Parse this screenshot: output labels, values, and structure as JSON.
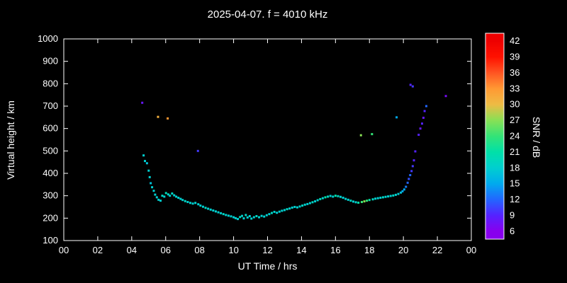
{
  "chart_data": {
    "type": "scatter",
    "title": "2025-04-07. f = 4010 kHz",
    "xlabel": "UT Time / hrs",
    "ylabel": "Virtual height / km",
    "xlim": [
      0,
      24
    ],
    "ylim": [
      100,
      1000
    ],
    "x_ticks": [
      0,
      2,
      4,
      6,
      8,
      10,
      12,
      14,
      16,
      18,
      20,
      22,
      24
    ],
    "x_ticklabels": [
      "00",
      "02",
      "04",
      "06",
      "08",
      "10",
      "12",
      "14",
      "16",
      "18",
      "20",
      "22",
      "00"
    ],
    "y_ticks": [
      100,
      200,
      300,
      400,
      500,
      600,
      700,
      800,
      900,
      1000
    ],
    "background_color": "#000000",
    "axis_color": "#ffffff",
    "grid": false,
    "marker": "square",
    "colorbar": {
      "label": "SNR / dB",
      "ticks": [
        42,
        39,
        36,
        33,
        30,
        27,
        24,
        21,
        18,
        15,
        12,
        9,
        6
      ],
      "range": [
        4.5,
        43.5
      ],
      "stops": [
        {
          "snr": 6,
          "color": "#8800ee"
        },
        {
          "snr": 9,
          "color": "#5522ff"
        },
        {
          "snr": 12,
          "color": "#2266ff"
        },
        {
          "snr": 15,
          "color": "#00aaee"
        },
        {
          "snr": 18,
          "color": "#00cfcf"
        },
        {
          "snr": 21,
          "color": "#00e0a8"
        },
        {
          "snr": 24,
          "color": "#33e377"
        },
        {
          "snr": 27,
          "color": "#88e055"
        },
        {
          "snr": 30,
          "color": "#eebb44"
        },
        {
          "snr": 33,
          "color": "#ff9933"
        },
        {
          "snr": 36,
          "color": "#ff5522"
        },
        {
          "snr": 39,
          "color": "#ff1100"
        },
        {
          "snr": 42,
          "color": "#ee0000"
        }
      ]
    },
    "points_format": [
      "ut_hr",
      "virtual_height_km",
      "snr_db"
    ],
    "points": [
      [
        4.62,
        715,
        8
      ],
      [
        4.7,
        480,
        18
      ],
      [
        4.78,
        455,
        18
      ],
      [
        4.9,
        445,
        17
      ],
      [
        5.0,
        412,
        18
      ],
      [
        5.06,
        383,
        18
      ],
      [
        5.12,
        356,
        17
      ],
      [
        5.2,
        338,
        18
      ],
      [
        5.3,
        322,
        18
      ],
      [
        5.38,
        305,
        18
      ],
      [
        5.48,
        293,
        18
      ],
      [
        5.55,
        652,
        31
      ],
      [
        5.58,
        282,
        18
      ],
      [
        5.7,
        278,
        18
      ],
      [
        5.8,
        300,
        19
      ],
      [
        5.92,
        296,
        18
      ],
      [
        6.02,
        312,
        20
      ],
      [
        6.12,
        645,
        33
      ],
      [
        6.15,
        306,
        19
      ],
      [
        6.25,
        300,
        18
      ],
      [
        6.38,
        310,
        19
      ],
      [
        6.5,
        302,
        18
      ],
      [
        6.62,
        296,
        18
      ],
      [
        6.75,
        291,
        18
      ],
      [
        6.88,
        286,
        18
      ],
      [
        7.0,
        281,
        18
      ],
      [
        7.15,
        276,
        19
      ],
      [
        7.3,
        272,
        18
      ],
      [
        7.45,
        268,
        18
      ],
      [
        7.6,
        265,
        18
      ],
      [
        7.75,
        268,
        18
      ],
      [
        7.9,
        500,
        10
      ],
      [
        7.92,
        262,
        18
      ],
      [
        8.05,
        256,
        18
      ],
      [
        8.2,
        251,
        18
      ],
      [
        8.35,
        246,
        19
      ],
      [
        8.5,
        242,
        18
      ],
      [
        8.65,
        238,
        18
      ],
      [
        8.8,
        234,
        18
      ],
      [
        8.95,
        230,
        18
      ],
      [
        9.1,
        226,
        18
      ],
      [
        9.25,
        222,
        18
      ],
      [
        9.4,
        218,
        19
      ],
      [
        9.55,
        214,
        18
      ],
      [
        9.7,
        211,
        18
      ],
      [
        9.85,
        208,
        18
      ],
      [
        10.0,
        204,
        18
      ],
      [
        10.12,
        200,
        18
      ],
      [
        10.25,
        196,
        18
      ],
      [
        10.38,
        205,
        20
      ],
      [
        10.5,
        210,
        18
      ],
      [
        10.6,
        199,
        18
      ],
      [
        10.72,
        214,
        19
      ],
      [
        10.82,
        203,
        18
      ],
      [
        10.95,
        209,
        18
      ],
      [
        11.05,
        198,
        18
      ],
      [
        11.2,
        204,
        18
      ],
      [
        11.35,
        209,
        19
      ],
      [
        11.5,
        204,
        18
      ],
      [
        11.65,
        210,
        18
      ],
      [
        11.8,
        207,
        18
      ],
      [
        11.95,
        213,
        18
      ],
      [
        12.1,
        218,
        18
      ],
      [
        12.25,
        223,
        19
      ],
      [
        12.4,
        228,
        18
      ],
      [
        12.55,
        224,
        18
      ],
      [
        12.7,
        229,
        18
      ],
      [
        12.85,
        233,
        18
      ],
      [
        13.0,
        236,
        18
      ],
      [
        13.15,
        240,
        19
      ],
      [
        13.3,
        243,
        18
      ],
      [
        13.45,
        247,
        18
      ],
      [
        13.6,
        250,
        18
      ],
      [
        13.75,
        248,
        18
      ],
      [
        13.9,
        252,
        18
      ],
      [
        14.05,
        256,
        19
      ],
      [
        14.2,
        260,
        18
      ],
      [
        14.35,
        263,
        18
      ],
      [
        14.5,
        267,
        18
      ],
      [
        14.65,
        271,
        19
      ],
      [
        14.8,
        275,
        18
      ],
      [
        14.95,
        280,
        18
      ],
      [
        15.1,
        285,
        20
      ],
      [
        15.25,
        289,
        18
      ],
      [
        15.4,
        293,
        21
      ],
      [
        15.55,
        296,
        19
      ],
      [
        15.7,
        299,
        18
      ],
      [
        15.85,
        296,
        18
      ],
      [
        16.0,
        300,
        21
      ],
      [
        16.15,
        298,
        19
      ],
      [
        16.3,
        295,
        18
      ],
      [
        16.45,
        291,
        18
      ],
      [
        16.6,
        286,
        18
      ],
      [
        16.75,
        282,
        18
      ],
      [
        16.9,
        278,
        19
      ],
      [
        17.05,
        274,
        18
      ],
      [
        17.2,
        271,
        18
      ],
      [
        17.35,
        269,
        21
      ],
      [
        17.5,
        570,
        27
      ],
      [
        17.55,
        272,
        24
      ],
      [
        17.7,
        275,
        27
      ],
      [
        17.85,
        278,
        24
      ],
      [
        18.0,
        281,
        21
      ],
      [
        18.15,
        575,
        24
      ],
      [
        18.2,
        284,
        19
      ],
      [
        18.35,
        287,
        18
      ],
      [
        18.5,
        289,
        18
      ],
      [
        18.65,
        291,
        18
      ],
      [
        18.8,
        293,
        19
      ],
      [
        18.95,
        295,
        18
      ],
      [
        19.1,
        297,
        18
      ],
      [
        19.25,
        299,
        18
      ],
      [
        19.4,
        301,
        19
      ],
      [
        19.55,
        304,
        18
      ],
      [
        19.6,
        650,
        15
      ],
      [
        19.7,
        308,
        18
      ],
      [
        19.85,
        314,
        17
      ],
      [
        19.95,
        320,
        15
      ],
      [
        20.05,
        328,
        15
      ],
      [
        20.15,
        340,
        13
      ],
      [
        20.25,
        358,
        12
      ],
      [
        20.32,
        375,
        11
      ],
      [
        20.4,
        392,
        12
      ],
      [
        20.42,
        795,
        9
      ],
      [
        20.48,
        410,
        10
      ],
      [
        20.55,
        788,
        10
      ],
      [
        20.55,
        432,
        10
      ],
      [
        20.62,
        458,
        9
      ],
      [
        20.7,
        498,
        9
      ],
      [
        20.9,
        572,
        9
      ],
      [
        21.0,
        600,
        8
      ],
      [
        21.1,
        622,
        9
      ],
      [
        21.18,
        648,
        8
      ],
      [
        21.25,
        678,
        9
      ],
      [
        21.35,
        700,
        12
      ],
      [
        22.5,
        745,
        7
      ]
    ]
  }
}
